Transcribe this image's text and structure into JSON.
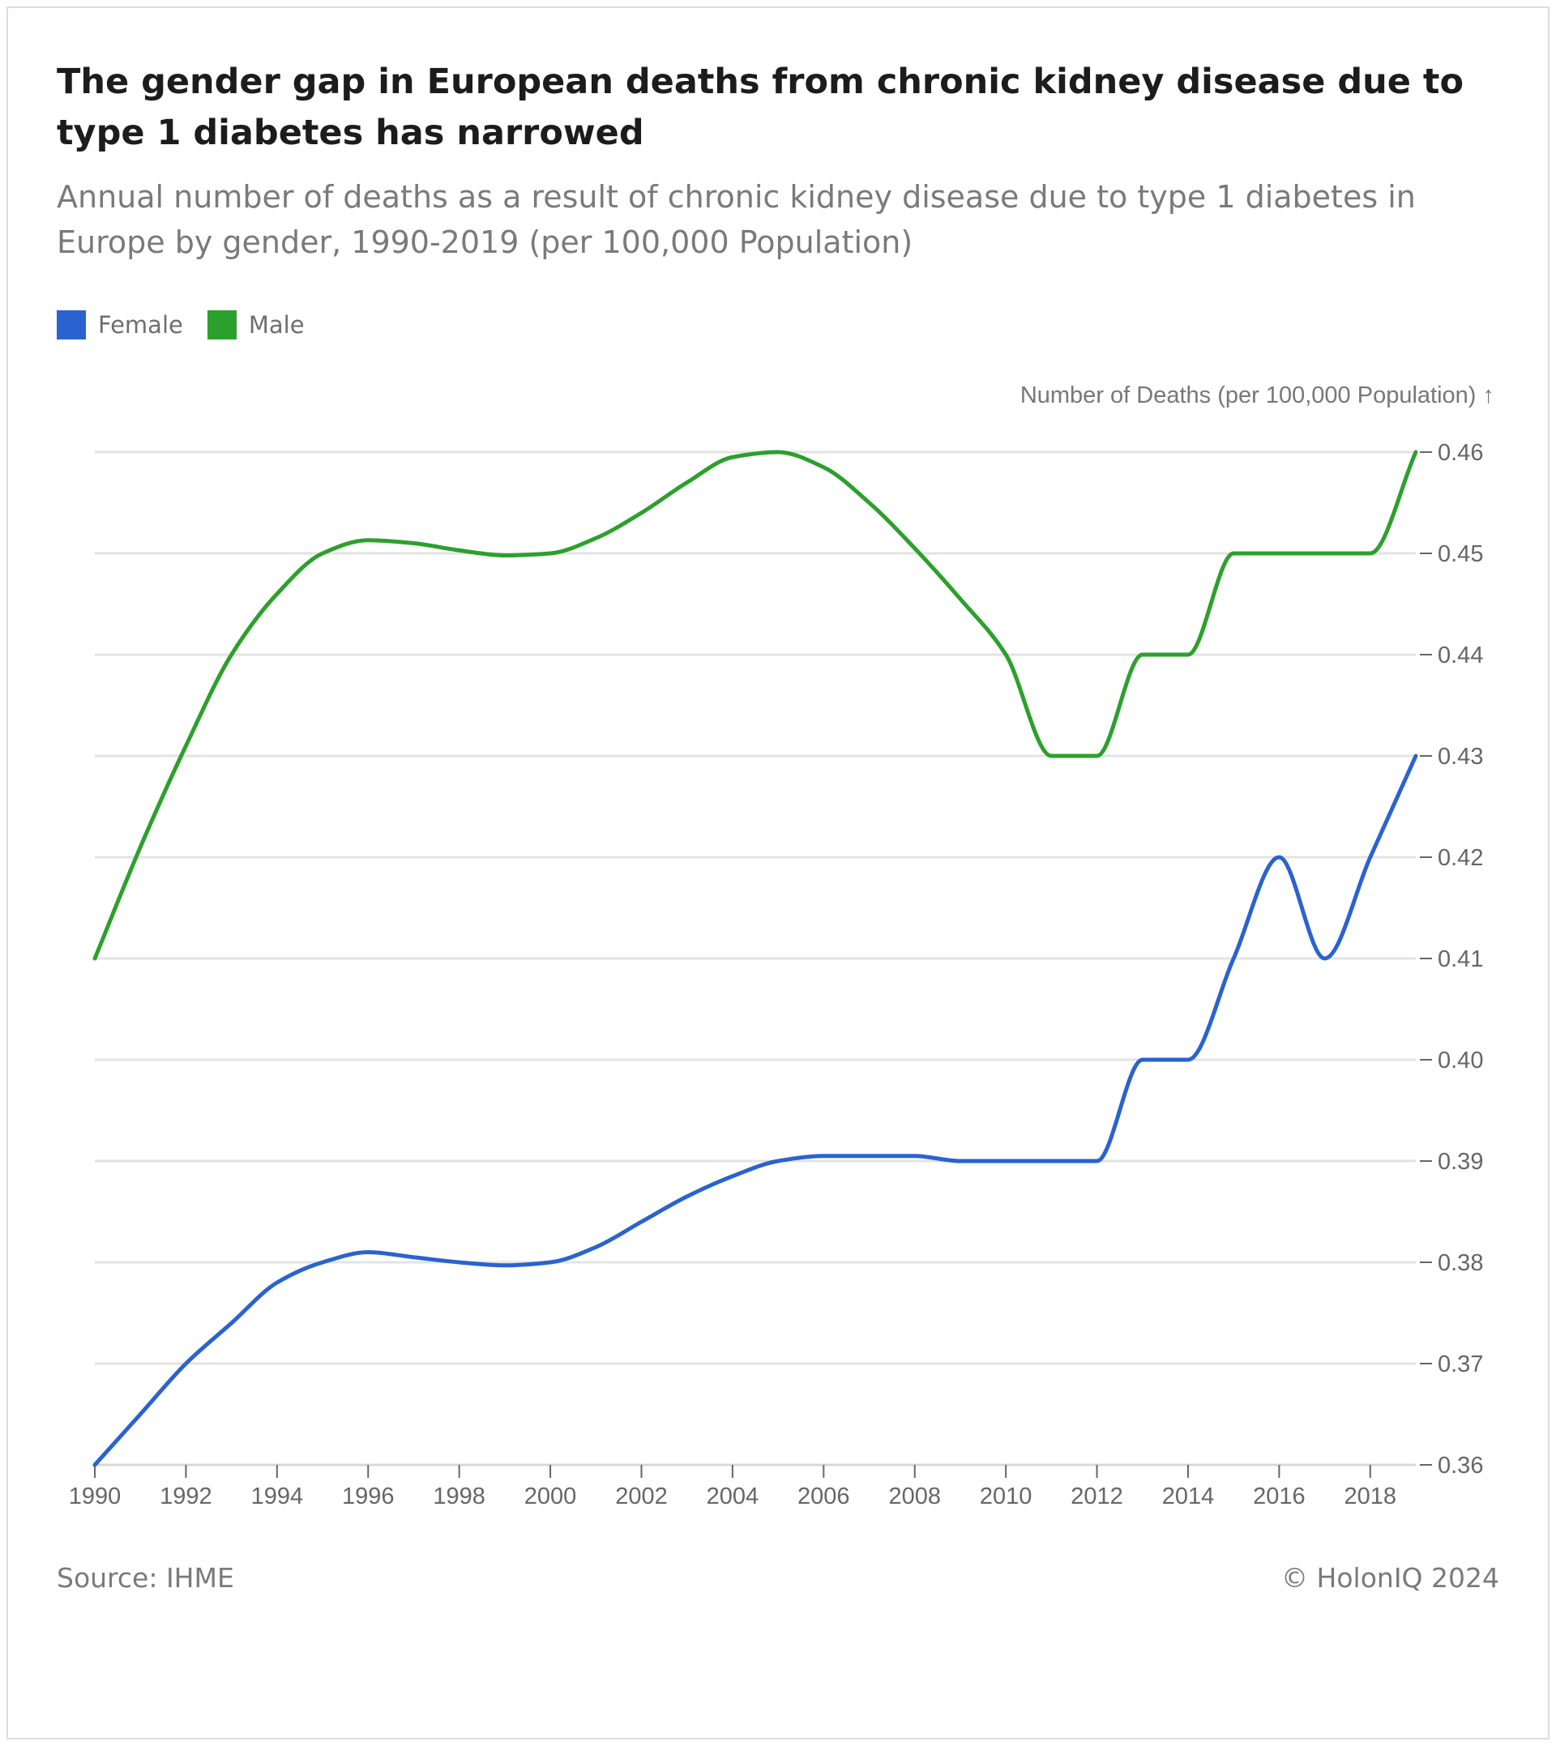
{
  "chart_data": {
    "type": "line",
    "title": "The gender gap in European deaths from chronic kidney disease due to type 1 diabetes has narrowed",
    "subtitle": "Annual number of deaths as a result of chronic kidney disease due to type 1 diabetes in Europe by gender, 1990-2019 (per 100,000 Population)",
    "ylabel": "Number of Deaths (per 100,000 Population) ↑",
    "xlabel": "",
    "x": [
      1990,
      1991,
      1992,
      1993,
      1994,
      1995,
      1996,
      1997,
      1998,
      1999,
      2000,
      2001,
      2002,
      2003,
      2004,
      2005,
      2006,
      2007,
      2008,
      2009,
      2010,
      2011,
      2012,
      2013,
      2014,
      2015,
      2016,
      2017,
      2018,
      2019
    ],
    "xticks": [
      "1990",
      "1992",
      "1994",
      "1996",
      "1998",
      "2000",
      "2002",
      "2004",
      "2006",
      "2008",
      "2010",
      "2012",
      "2014",
      "2016",
      "2018"
    ],
    "ylim": [
      0.36,
      0.46
    ],
    "yticks": [
      "0.36",
      "0.37",
      "0.38",
      "0.39",
      "0.40",
      "0.41",
      "0.42",
      "0.43",
      "0.44",
      "0.45",
      "0.46"
    ],
    "grid": true,
    "legend_position": "top-left",
    "series": [
      {
        "name": "Female",
        "color": "#2a63cf",
        "values": [
          0.36,
          0.365,
          0.37,
          0.374,
          0.378,
          0.38,
          0.381,
          0.3805,
          0.38,
          0.3797,
          0.38,
          0.3815,
          0.384,
          0.3865,
          0.3885,
          0.39,
          0.3905,
          0.3905,
          0.3905,
          0.39,
          0.39,
          0.39,
          0.39,
          0.4,
          0.4,
          0.41,
          0.42,
          0.41,
          0.42,
          0.43
        ]
      },
      {
        "name": "Male",
        "color": "#2ca02c",
        "values": [
          0.41,
          0.421,
          0.431,
          0.44,
          0.446,
          0.45,
          0.4513,
          0.451,
          0.4503,
          0.4498,
          0.45,
          0.4515,
          0.454,
          0.457,
          0.4595,
          0.46,
          0.4585,
          0.455,
          0.4505,
          0.4455,
          0.44,
          0.43,
          0.43,
          0.44,
          0.44,
          0.45,
          0.45,
          0.45,
          0.45,
          0.46
        ]
      }
    ]
  },
  "footer": {
    "source": "Source: IHME",
    "copyright": "© HolonIQ 2024"
  }
}
